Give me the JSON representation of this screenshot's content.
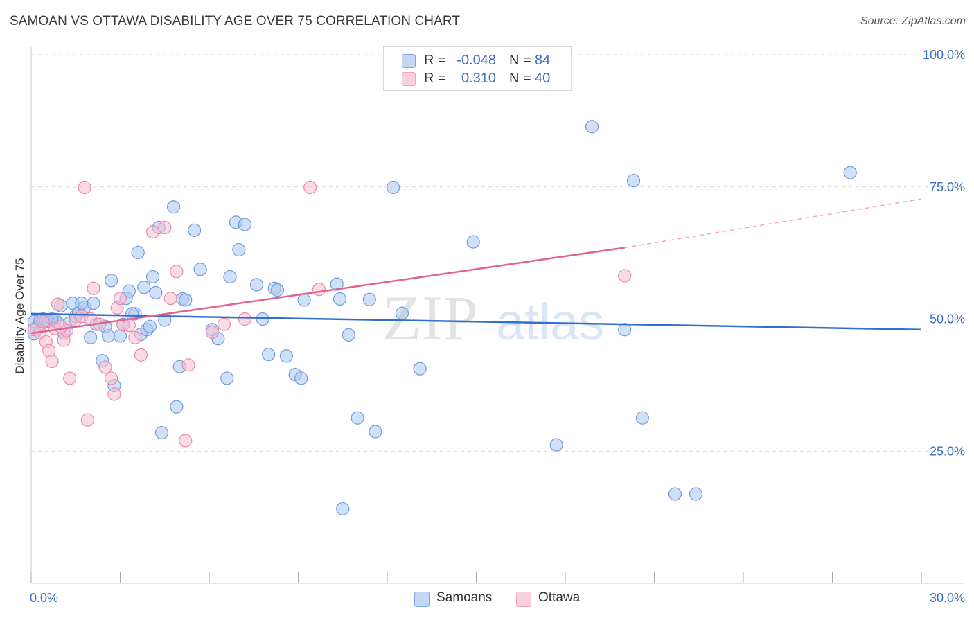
{
  "header": {
    "title": "SAMOAN VS OTTAWA DISABILITY AGE OVER 75 CORRELATION CHART",
    "source": "Source: ZipAtlas.com"
  },
  "watermark": {
    "zip": "ZIP",
    "atlas": "atlas"
  },
  "legend": {
    "rows": [
      {
        "r_label": "R =",
        "r_value": "-0.048",
        "n_label": "N =",
        "n_value": "84",
        "color": "#8fb3e8"
      },
      {
        "r_label": "R =",
        "r_value": "0.310",
        "n_label": "N =",
        "n_value": "40",
        "color": "#f5a8c0"
      }
    ]
  },
  "bottom_legend": {
    "samoans": "Samoans",
    "ottawa": "Ottawa"
  },
  "chart_data": {
    "type": "scatter",
    "title": "SAMOAN VS OTTAWA DISABILITY AGE OVER 75 CORRELATION CHART",
    "ylabel": "Disability Age Over 75",
    "xlim": [
      0,
      30
    ],
    "ylim": [
      0,
      100
    ],
    "x_ticks": [
      "0.0%",
      "30.0%"
    ],
    "y_ticks": [
      {
        "value": 25,
        "label": "25.0%"
      },
      {
        "value": 50,
        "label": "50.0%"
      },
      {
        "value": 75,
        "label": "75.0%"
      },
      {
        "value": 100,
        "label": "100.0%"
      }
    ],
    "grid": "dashed horizontal",
    "legend_position": "top-center",
    "series": [
      {
        "name": "Samoans",
        "color": "#6f9be0",
        "fill": "#a9c6ef",
        "trend": {
          "x": [
            0,
            30
          ],
          "y": [
            51.0,
            48.0
          ]
        },
        "points": [
          [
            0.1,
            49.5
          ],
          [
            0.2,
            48.5
          ],
          [
            0.3,
            49.8
          ],
          [
            0.1,
            47.2
          ],
          [
            0.4,
            50.0
          ],
          [
            0.5,
            49.7
          ],
          [
            0.6,
            49.6
          ],
          [
            0.8,
            49.9
          ],
          [
            0.9,
            49.3
          ],
          [
            1.0,
            52.5
          ],
          [
            1.1,
            47.4
          ],
          [
            1.3,
            49.3
          ],
          [
            1.4,
            53.0
          ],
          [
            1.5,
            50.5
          ],
          [
            1.6,
            51.2
          ],
          [
            1.8,
            52.2
          ],
          [
            2.0,
            46.5
          ],
          [
            2.1,
            53.0
          ],
          [
            2.2,
            49.0
          ],
          [
            2.4,
            42.1
          ],
          [
            2.5,
            48.6
          ],
          [
            2.6,
            46.8
          ],
          [
            2.7,
            57.3
          ],
          [
            2.8,
            37.4
          ],
          [
            3.0,
            46.8
          ],
          [
            3.1,
            49.0
          ],
          [
            3.2,
            53.9
          ],
          [
            3.3,
            55.3
          ],
          [
            3.5,
            51.0
          ],
          [
            3.6,
            62.6
          ],
          [
            3.7,
            47.1
          ],
          [
            3.8,
            56.0
          ],
          [
            3.9,
            48.0
          ],
          [
            4.0,
            48.6
          ],
          [
            4.1,
            58.0
          ],
          [
            4.2,
            55.0
          ],
          [
            4.3,
            67.3
          ],
          [
            4.4,
            28.5
          ],
          [
            4.5,
            49.8
          ],
          [
            4.8,
            71.2
          ],
          [
            4.9,
            33.4
          ],
          [
            5.0,
            41.0
          ],
          [
            5.1,
            53.8
          ],
          [
            5.2,
            53.6
          ],
          [
            5.5,
            66.8
          ],
          [
            5.7,
            59.4
          ],
          [
            6.1,
            48.0
          ],
          [
            6.3,
            46.3
          ],
          [
            6.6,
            38.8
          ],
          [
            6.7,
            58.0
          ],
          [
            6.9,
            68.3
          ],
          [
            7.0,
            63.1
          ],
          [
            7.2,
            67.9
          ],
          [
            7.6,
            56.5
          ],
          [
            7.8,
            50.0
          ],
          [
            8.0,
            43.3
          ],
          [
            8.2,
            55.8
          ],
          [
            8.3,
            55.5
          ],
          [
            8.6,
            43.0
          ],
          [
            8.9,
            39.5
          ],
          [
            9.1,
            38.8
          ],
          [
            9.2,
            53.6
          ],
          [
            10.3,
            56.6
          ],
          [
            10.4,
            53.8
          ],
          [
            10.7,
            47.0
          ],
          [
            11.0,
            31.3
          ],
          [
            11.4,
            53.7
          ],
          [
            11.6,
            28.7
          ],
          [
            12.2,
            74.9
          ],
          [
            12.5,
            51.1
          ],
          [
            13.1,
            40.6
          ],
          [
            10.5,
            14.1
          ],
          [
            14.9,
            64.6
          ],
          [
            17.7,
            26.2
          ],
          [
            18.9,
            86.4
          ],
          [
            20.0,
            48.0
          ],
          [
            20.3,
            76.2
          ],
          [
            20.6,
            31.3
          ],
          [
            21.7,
            16.9
          ],
          [
            22.4,
            16.9
          ],
          [
            27.6,
            77.7
          ],
          [
            1.7,
            53.0
          ],
          [
            3.4,
            51.0
          ],
          [
            0.7,
            50.0
          ]
        ]
      },
      {
        "name": "Ottawa",
        "color": "#e98aa9",
        "fill": "#f7bdd0",
        "trend": {
          "x": [
            0,
            20
          ],
          "y": [
            47.3,
            63.5
          ]
        },
        "trend_dashed": {
          "x": [
            20,
            30
          ],
          "y": [
            63.5,
            72.7
          ]
        },
        "points": [
          [
            0.1,
            48.0
          ],
          [
            0.3,
            47.4
          ],
          [
            0.5,
            45.7
          ],
          [
            0.6,
            44.0
          ],
          [
            0.7,
            42.0
          ],
          [
            0.8,
            48.2
          ],
          [
            0.9,
            52.8
          ],
          [
            1.1,
            46.0
          ],
          [
            1.2,
            47.8
          ],
          [
            1.3,
            38.8
          ],
          [
            1.5,
            49.8
          ],
          [
            1.7,
            50.5
          ],
          [
            1.8,
            74.9
          ],
          [
            1.9,
            30.9
          ],
          [
            2.0,
            50.0
          ],
          [
            2.1,
            55.8
          ],
          [
            2.3,
            49.0
          ],
          [
            2.5,
            40.9
          ],
          [
            2.7,
            38.8
          ],
          [
            2.8,
            35.8
          ],
          [
            2.9,
            52.1
          ],
          [
            3.0,
            53.9
          ],
          [
            3.1,
            48.9
          ],
          [
            3.3,
            48.8
          ],
          [
            3.5,
            46.5
          ],
          [
            3.7,
            43.2
          ],
          [
            4.1,
            66.5
          ],
          [
            4.5,
            67.3
          ],
          [
            4.7,
            53.9
          ],
          [
            4.9,
            59.0
          ],
          [
            5.2,
            27.0
          ],
          [
            5.3,
            41.3
          ],
          [
            6.1,
            47.5
          ],
          [
            6.5,
            49.0
          ],
          [
            7.2,
            50.0
          ],
          [
            9.4,
            74.9
          ],
          [
            9.7,
            55.6
          ],
          [
            20.0,
            58.2
          ],
          [
            1.0,
            48.5
          ],
          [
            0.4,
            49.5
          ]
        ]
      }
    ]
  }
}
